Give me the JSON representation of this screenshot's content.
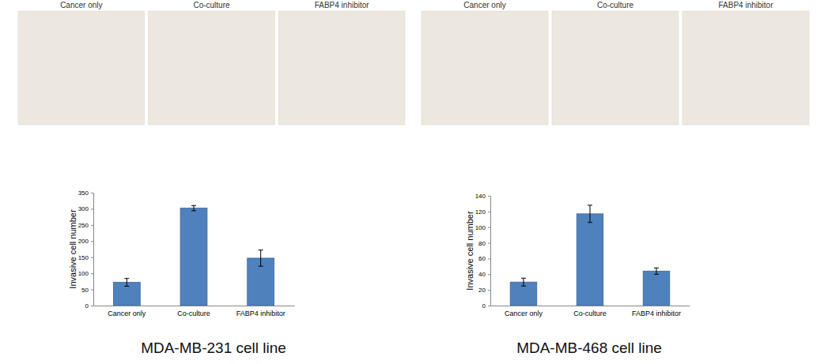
{
  "chart_data": [
    {
      "type": "bar",
      "title": "MDA-MB-231 cell line",
      "y_label": "Invasive cell number",
      "panel_labels": [
        "Cancer only",
        "Co-culture",
        "FABP4 inhibitor"
      ],
      "categories": [
        "Cancer only",
        "Co-culture",
        "FABP4 inhibitor"
      ],
      "values": [
        72,
        302,
        147
      ],
      "errors": [
        12,
        8,
        25
      ],
      "color": "#4f81bd",
      "ylim": [
        0,
        350
      ],
      "yticks": [
        0,
        50,
        100,
        150,
        200,
        250,
        300,
        350
      ],
      "grid": false
    },
    {
      "type": "bar",
      "title": "MDA-MB-468 cell line",
      "y_label": "Invasive cell number",
      "panel_labels": [
        "Cancer only",
        "Co-culture",
        "FABP4 inhibitor"
      ],
      "categories": [
        "Cancer only",
        "Co-culture",
        "FABP4 inhibitor"
      ],
      "values": [
        30,
        117,
        44
      ],
      "errors": [
        5,
        11,
        4
      ],
      "color": "#4f81bd",
      "ylim": [
        0,
        140
      ],
      "yticks": [
        0,
        20,
        40,
        60,
        80,
        100,
        120,
        140
      ],
      "grid": false
    }
  ]
}
